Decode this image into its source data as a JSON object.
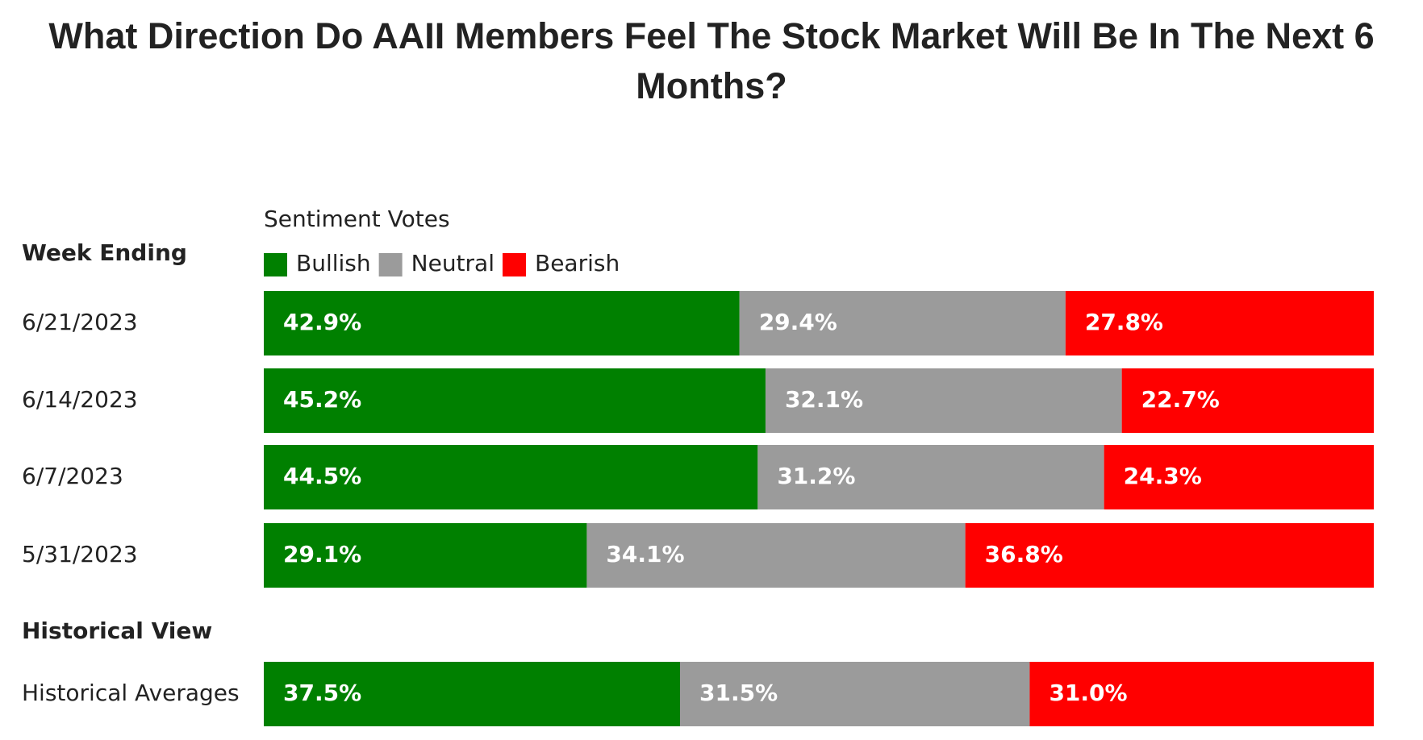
{
  "chart_data": [
    {
      "type": "stacked-bar",
      "title": "What Direction Do AAII Members Feel The Stock Market Will Be In The Next 6 Months?",
      "legend_title": "Sentiment Votes",
      "category_header": "Week Ending",
      "categories": [
        "6/21/2023",
        "6/14/2023",
        "6/7/2023",
        "5/31/2023"
      ],
      "series": [
        {
          "name": "Bullish",
          "color": "#008000",
          "values": [
            42.9,
            45.2,
            44.5,
            29.1
          ],
          "value_labels": [
            "42.9%",
            "45.2%",
            "44.5%",
            "29.1%"
          ]
        },
        {
          "name": "Neutral",
          "color": "#9b9b9b",
          "values": [
            29.4,
            32.1,
            31.2,
            34.1
          ],
          "value_labels": [
            "29.4%",
            "32.1%",
            "31.2%",
            "34.1%"
          ]
        },
        {
          "name": "Bearish",
          "color": "#ff0000",
          "values": [
            27.8,
            22.7,
            24.3,
            36.8
          ],
          "value_labels": [
            "27.8%",
            "22.7%",
            "24.3%",
            "36.8%"
          ]
        }
      ]
    },
    {
      "type": "stacked-bar",
      "category_header": "Historical View",
      "categories": [
        "Historical Averages"
      ],
      "series": [
        {
          "color": "#008000",
          "values": [
            37.5
          ],
          "value_labels": [
            "37.5%"
          ]
        },
        {
          "color": "#9b9b9b",
          "values": [
            31.5
          ],
          "value_labels": [
            "31.5%"
          ]
        },
        {
          "color": "#ff0000",
          "values": [
            31.0
          ],
          "value_labels": [
            "31.0%"
          ]
        }
      ]
    }
  ]
}
